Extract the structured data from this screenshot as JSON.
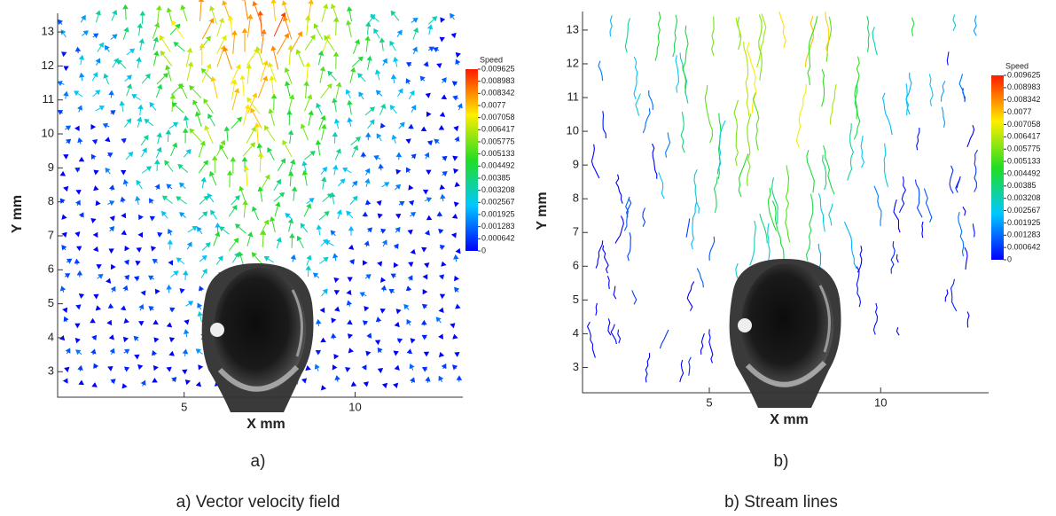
{
  "figure": {
    "panels": [
      {
        "label": "a)",
        "caption": "a) Vector velocity field",
        "kind": "vector",
        "xlabel": "X mm",
        "ylabel": "Y mm",
        "xlim": [
          1.3,
          13.15
        ],
        "ylim": [
          2.25,
          13.55
        ],
        "xticks": [
          5,
          10
        ],
        "yticks": [
          3,
          4,
          5,
          6,
          7,
          8,
          9,
          10,
          11,
          12,
          13
        ],
        "colorbar": {
          "title": "Speed",
          "ticks": [
            0.009625,
            0.008983,
            0.008342,
            0.0077,
            0.007058,
            0.006417,
            0.005775,
            0.005133,
            0.004492,
            0.00385,
            0.003208,
            0.002567,
            0.001925,
            0.001283,
            0.000642,
            0
          ]
        }
      },
      {
        "label": "b)",
        "caption": "b) Stream lines",
        "kind": "stream",
        "xlabel": "X mm",
        "ylabel": "Y mm",
        "xlim": [
          1.3,
          13.15
        ],
        "ylim": [
          2.25,
          13.55
        ],
        "xticks": [
          5,
          10
        ],
        "yticks": [
          3,
          4,
          5,
          6,
          7,
          8,
          9,
          10,
          11,
          12,
          13
        ],
        "colorbar": {
          "title": "Speed",
          "ticks": [
            0.009625,
            0.008983,
            0.008342,
            0.0077,
            0.007058,
            0.006417,
            0.005775,
            0.005133,
            0.004492,
            0.00385,
            0.003208,
            0.002567,
            0.001925,
            0.001283,
            0.000642,
            0
          ]
        }
      }
    ]
  }
}
